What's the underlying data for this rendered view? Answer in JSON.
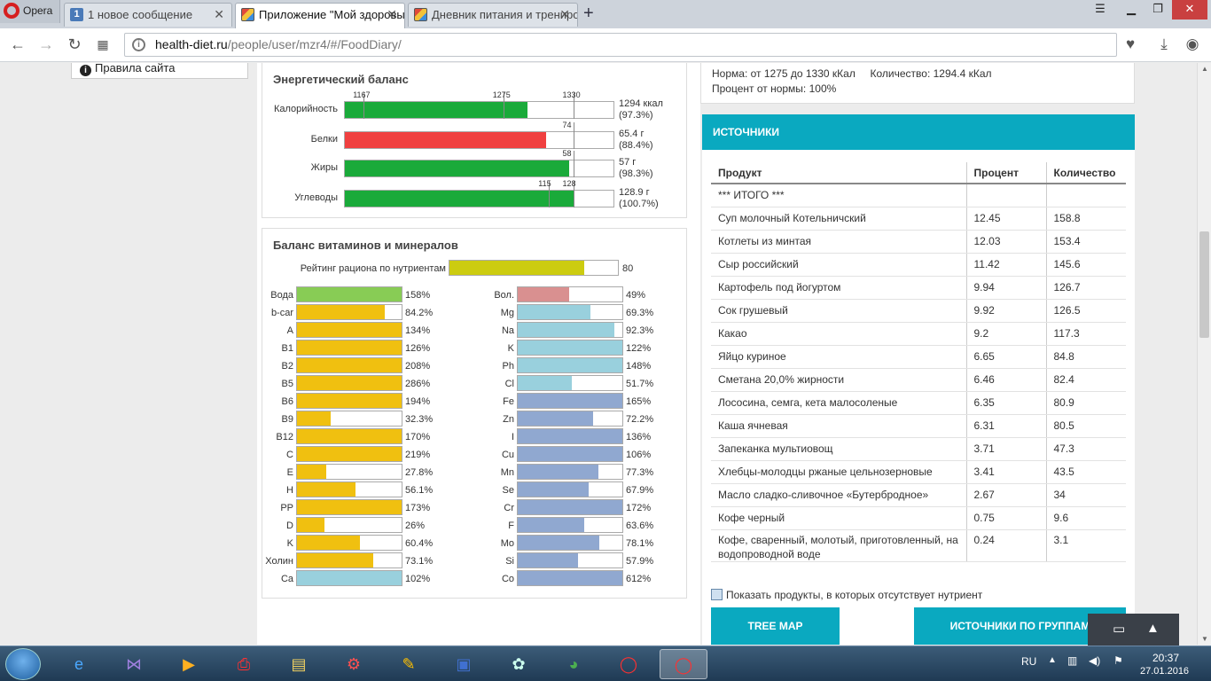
{
  "browser": {
    "menu_label": "Opera",
    "tabs": [
      {
        "label": "1 новое сообщение",
        "icon": "1"
      },
      {
        "label": "Приложение \"Мой здоровый образ жизни\"",
        "icon": "cube-icon"
      },
      {
        "label": "Дневник питания и тренировок",
        "icon": "cube-icon"
      }
    ],
    "url_host": "health-diet.ru",
    "url_path": "/people/user/mzr4/#/FoodDiary/"
  },
  "sidebar": {
    "rules_link": "Правила сайта"
  },
  "energy": {
    "title": "Энергетический баланс",
    "rows": [
      {
        "label": "Калорийность",
        "fill": 0.68,
        "color": "#1aaa3a",
        "ticks": [
          {
            "label": "1167",
            "pos": 0.07
          },
          {
            "label": "1275",
            "pos": 0.59
          },
          {
            "label": "1330",
            "pos": 0.85
          }
        ],
        "value1": "1294 ккал",
        "value2": "(97.3%)"
      },
      {
        "label": "Белки",
        "fill": 0.75,
        "color": "#f04040",
        "ticks": [
          {
            "label": "74",
            "pos": 0.85
          }
        ],
        "value1": "65.4 г",
        "value2": "(88.4%)"
      },
      {
        "label": "Жиры",
        "fill": 0.835,
        "color": "#1aaa3a",
        "ticks": [
          {
            "label": "58",
            "pos": 0.85
          }
        ],
        "value1": "57 г",
        "value2": "(98.3%)"
      },
      {
        "label": "Углеводы",
        "fill": 0.85,
        "color": "#1aaa3a",
        "ticks": [
          {
            "label": "115",
            "pos": 0.76
          },
          {
            "label": "128",
            "pos": 0.85
          }
        ],
        "value1": "128.9 г",
        "value2": "(100.7%)"
      }
    ]
  },
  "vitamins": {
    "title": "Баланс витаминов и минералов",
    "rating": {
      "label": "Рейтинг рациона по нутриентам",
      "value": "80",
      "fill": 0.8,
      "color": "#cccc10"
    },
    "left": [
      {
        "label": "Вода",
        "value": "158%",
        "fill": 1.0,
        "color": "#88cc55"
      },
      {
        "label": "b-car",
        "value": "84.2%",
        "fill": 0.842,
        "color": "#f0c010"
      },
      {
        "label": "A",
        "value": "134%",
        "fill": 1.0,
        "color": "#f0c010"
      },
      {
        "label": "B1",
        "value": "126%",
        "fill": 1.0,
        "color": "#f0c010"
      },
      {
        "label": "B2",
        "value": "208%",
        "fill": 1.0,
        "color": "#f0c010"
      },
      {
        "label": "B5",
        "value": "286%",
        "fill": 1.0,
        "color": "#f0c010"
      },
      {
        "label": "B6",
        "value": "194%",
        "fill": 1.0,
        "color": "#f0c010"
      },
      {
        "label": "B9",
        "value": "32.3%",
        "fill": 0.323,
        "color": "#f0c010"
      },
      {
        "label": "B12",
        "value": "170%",
        "fill": 1.0,
        "color": "#f0c010"
      },
      {
        "label": "C",
        "value": "219%",
        "fill": 1.0,
        "color": "#f0c010"
      },
      {
        "label": "E",
        "value": "27.8%",
        "fill": 0.278,
        "color": "#f0c010"
      },
      {
        "label": "H",
        "value": "56.1%",
        "fill": 0.561,
        "color": "#f0c010"
      },
      {
        "label": "PP",
        "value": "173%",
        "fill": 1.0,
        "color": "#f0c010"
      },
      {
        "label": "D",
        "value": "26%",
        "fill": 0.26,
        "color": "#f0c010"
      },
      {
        "label": "K",
        "value": "60.4%",
        "fill": 0.604,
        "color": "#f0c010"
      },
      {
        "label": "Холин",
        "value": "73.1%",
        "fill": 0.731,
        "color": "#f0c010"
      },
      {
        "label": "Ca",
        "value": "102%",
        "fill": 1.0,
        "color": "#99d0dd"
      }
    ],
    "right": [
      {
        "label": "Вол.",
        "value": "49%",
        "fill": 0.49,
        "color": "#d99090"
      },
      {
        "label": "Mg",
        "value": "69.3%",
        "fill": 0.693,
        "color": "#99d0dd"
      },
      {
        "label": "Na",
        "value": "92.3%",
        "fill": 0.923,
        "color": "#99d0dd"
      },
      {
        "label": "K",
        "value": "122%",
        "fill": 1.0,
        "color": "#99d0dd"
      },
      {
        "label": "Ph",
        "value": "148%",
        "fill": 1.0,
        "color": "#99d0dd"
      },
      {
        "label": "Cl",
        "value": "51.7%",
        "fill": 0.517,
        "color": "#99d0dd"
      },
      {
        "label": "Fe",
        "value": "165%",
        "fill": 1.0,
        "color": "#90a8d0"
      },
      {
        "label": "Zn",
        "value": "72.2%",
        "fill": 0.722,
        "color": "#90a8d0"
      },
      {
        "label": "I",
        "value": "136%",
        "fill": 1.0,
        "color": "#90a8d0"
      },
      {
        "label": "Cu",
        "value": "106%",
        "fill": 1.0,
        "color": "#90a8d0"
      },
      {
        "label": "Mn",
        "value": "77.3%",
        "fill": 0.773,
        "color": "#90a8d0"
      },
      {
        "label": "Se",
        "value": "67.9%",
        "fill": 0.679,
        "color": "#90a8d0"
      },
      {
        "label": "Cr",
        "value": "172%",
        "fill": 1.0,
        "color": "#90a8d0"
      },
      {
        "label": "F",
        "value": "63.6%",
        "fill": 0.636,
        "color": "#90a8d0"
      },
      {
        "label": "Mo",
        "value": "78.1%",
        "fill": 0.781,
        "color": "#90a8d0"
      },
      {
        "label": "Si",
        "value": "57.9%",
        "fill": 0.579,
        "color": "#90a8d0"
      },
      {
        "label": "Co",
        "value": "612%",
        "fill": 1.0,
        "color": "#90a8d0"
      }
    ]
  },
  "norm": {
    "line1": "Норма: от 1275 до 1330 кКал     Количество: 1294.4 кКал",
    "line2": "Процент от нормы: 100%"
  },
  "sources": {
    "title": "ИСТОЧНИКИ",
    "columns": [
      "Продукт",
      "Процент",
      "Количество"
    ],
    "rows": [
      [
        "*** ИТОГО ***",
        "",
        ""
      ],
      [
        "Суп молочный Котельничский",
        "12.45",
        "158.8"
      ],
      [
        "Котлеты из минтая",
        "12.03",
        "153.4"
      ],
      [
        "Сыр российский",
        "11.42",
        "145.6"
      ],
      [
        "Картофель под йогуртом",
        "9.94",
        "126.7"
      ],
      [
        "Сок грушевый",
        "9.92",
        "126.5"
      ],
      [
        "Какао",
        "9.2",
        "117.3"
      ],
      [
        "Яйцо куриное",
        "6.65",
        "84.8"
      ],
      [
        "Сметана 20,0% жирности",
        "6.46",
        "82.4"
      ],
      [
        "Лососина, семга, кета малосоленые",
        "6.35",
        "80.9"
      ],
      [
        "Каша ячневая",
        "6.31",
        "80.5"
      ],
      [
        "Запеканка мультиовощ",
        "3.71",
        "47.3"
      ],
      [
        "Хлебцы-молодцы ржаные цельнозерновые",
        "3.41",
        "43.5"
      ],
      [
        "Масло сладко-сливочное «Бутербродное»",
        "2.67",
        "34"
      ],
      [
        "Кофе черный",
        "0.75",
        "9.6"
      ],
      [
        "Кофе, сваренный, молотый, приготовленный, на водопроводной воде",
        "0.24",
        "3.1"
      ]
    ],
    "checkbox_label": "Показать продукты, в которых отсутствует нутриент",
    "btn_treemap": "TREE MAP",
    "btn_groups": "ИСТОЧНИКИ ПО ГРУППАМ"
  },
  "taskbar": {
    "lang": "RU",
    "time": "20:37",
    "date": "27.01.2016"
  }
}
